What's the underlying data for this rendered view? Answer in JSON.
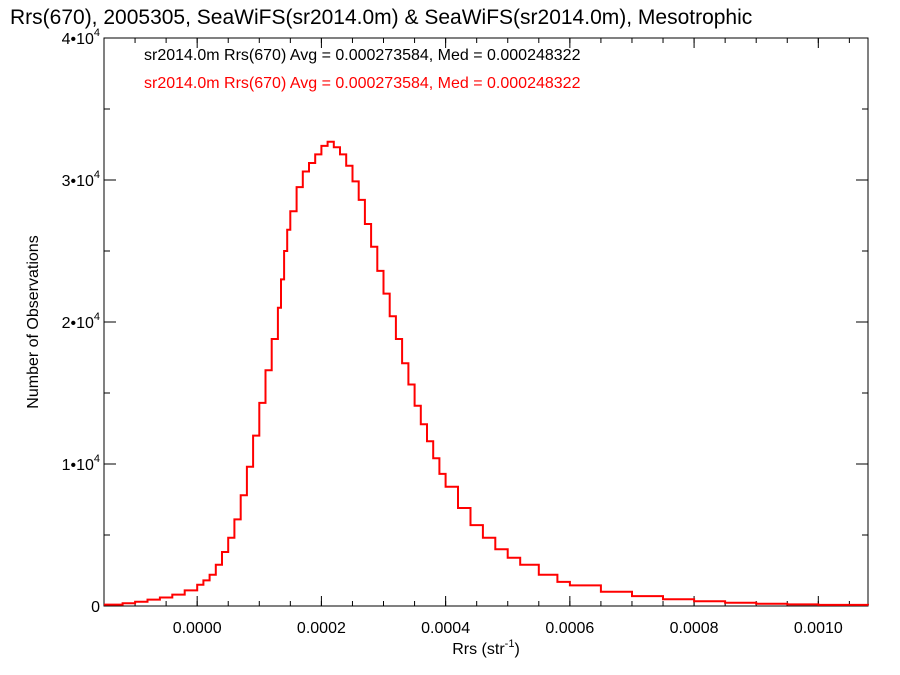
{
  "chart_data": {
    "type": "line",
    "title": "Rrs(670), 2005305, SeaWiFS(sr2014.0m) & SeaWiFS(sr2014.0m), Mesotrophic",
    "xlabel": "Rrs (str",
    "xlabel_sup": "-1",
    "xlabel_end": ")",
    "ylabel": "Number of Observations",
    "xlim": [
      -0.00015,
      0.00108
    ],
    "ylim": [
      0,
      40000
    ],
    "x_ticks": [
      {
        "value": 0.0,
        "label": "0.0000"
      },
      {
        "value": 0.0002,
        "label": "0.0002"
      },
      {
        "value": 0.0004,
        "label": "0.0004"
      },
      {
        "value": 0.0006,
        "label": "0.0006"
      },
      {
        "value": 0.0008,
        "label": "0.0008"
      },
      {
        "value": 0.001,
        "label": "0.0010"
      }
    ],
    "y_ticks": [
      {
        "value": 0,
        "label": "0",
        "sup": ""
      },
      {
        "value": 10000,
        "label": "1•10",
        "sup": "4"
      },
      {
        "value": 20000,
        "label": "2•10",
        "sup": "4"
      },
      {
        "value": 30000,
        "label": "3•10",
        "sup": "4"
      },
      {
        "value": 40000,
        "label": "4•10",
        "sup": "4"
      }
    ],
    "legend": [
      {
        "text": "sr2014.0m Rrs(670) Avg = 0.000273584, Med = 0.000248322",
        "color": "#000000"
      },
      {
        "text": "sr2014.0m Rrs(670) Avg = 0.000273584, Med = 0.000248322",
        "color": "#ff0000"
      }
    ],
    "series": [
      {
        "color": "#ff0000",
        "points": [
          [
            -0.00015,
            100
          ],
          [
            -0.00012,
            200
          ],
          [
            -0.0001,
            300
          ],
          [
            -8e-05,
            450
          ],
          [
            -6e-05,
            600
          ],
          [
            -4e-05,
            800
          ],
          [
            -2e-05,
            1100
          ],
          [
            0.0,
            1500
          ],
          [
            1e-05,
            1800
          ],
          [
            2e-05,
            2200
          ],
          [
            3e-05,
            2900
          ],
          [
            4e-05,
            3800
          ],
          [
            5e-05,
            4800
          ],
          [
            6e-05,
            6100
          ],
          [
            7e-05,
            7800
          ],
          [
            8e-05,
            9800
          ],
          [
            9e-05,
            12000
          ],
          [
            0.0001,
            14300
          ],
          [
            0.00011,
            16600
          ],
          [
            0.00012,
            18800
          ],
          [
            0.00013,
            21000
          ],
          [
            0.000135,
            23000
          ],
          [
            0.00014,
            25000
          ],
          [
            0.000145,
            26500
          ],
          [
            0.00015,
            27800
          ],
          [
            0.00016,
            29500
          ],
          [
            0.00017,
            30600
          ],
          [
            0.00018,
            31200
          ],
          [
            0.00019,
            31800
          ],
          [
            0.0002,
            32400
          ],
          [
            0.00021,
            32700
          ],
          [
            0.00022,
            32300
          ],
          [
            0.00023,
            31800
          ],
          [
            0.00024,
            31000
          ],
          [
            0.00025,
            29900
          ],
          [
            0.00026,
            28600
          ],
          [
            0.00027,
            26900
          ],
          [
            0.00028,
            25300
          ],
          [
            0.00029,
            23600
          ],
          [
            0.0003,
            22000
          ],
          [
            0.00031,
            20400
          ],
          [
            0.00032,
            18800
          ],
          [
            0.00033,
            17100
          ],
          [
            0.00034,
            15600
          ],
          [
            0.00035,
            14100
          ],
          [
            0.00036,
            12800
          ],
          [
            0.00037,
            11600
          ],
          [
            0.00038,
            10400
          ],
          [
            0.00039,
            9300
          ],
          [
            0.0004,
            8400
          ],
          [
            0.00042,
            6900
          ],
          [
            0.00044,
            5700
          ],
          [
            0.00046,
            4800
          ],
          [
            0.00048,
            4000
          ],
          [
            0.0005,
            3400
          ],
          [
            0.00052,
            2900
          ],
          [
            0.00055,
            2200
          ],
          [
            0.00058,
            1700
          ],
          [
            0.0006,
            1450
          ],
          [
            0.00065,
            1000
          ],
          [
            0.0007,
            700
          ],
          [
            0.00075,
            480
          ],
          [
            0.0008,
            330
          ],
          [
            0.00085,
            230
          ],
          [
            0.0009,
            160
          ],
          [
            0.00095,
            110
          ],
          [
            0.001,
            80
          ],
          [
            0.00108,
            50
          ]
        ]
      }
    ]
  }
}
